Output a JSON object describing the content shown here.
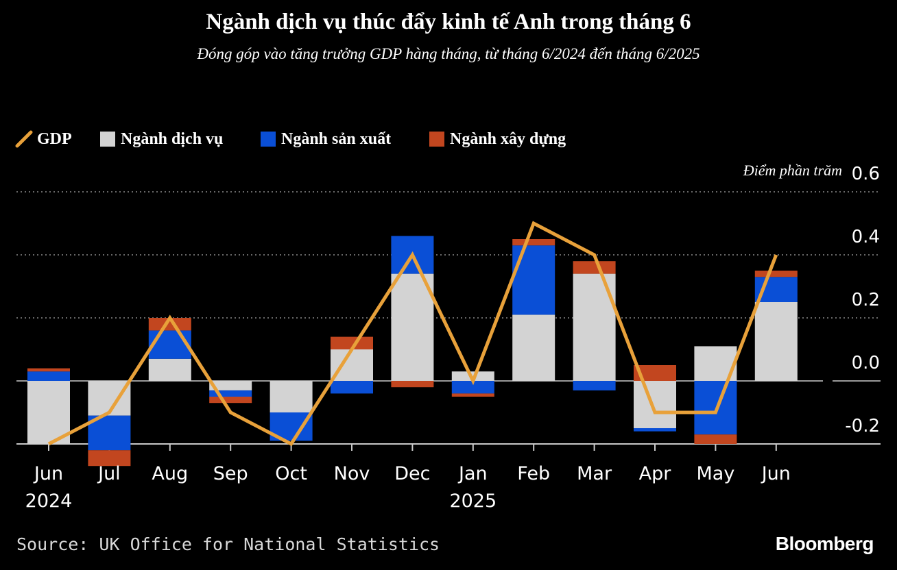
{
  "header": {
    "title": "Ngành dịch vụ thúc đẩy kinh tế Anh trong tháng 6",
    "subtitle": "Đóng góp vào tăng trưởng GDP hàng tháng, từ tháng 6/2024 đến tháng 6/2025"
  },
  "legend": {
    "gdp": "GDP",
    "services": "Ngành dịch vụ",
    "production": "Ngành sản xuất",
    "construction": "Ngành xây dựng"
  },
  "colors": {
    "gdp": "#e8a13a",
    "services": "#d3d3d3",
    "production": "#0a4fd6",
    "construction": "#c2461f",
    "grid": "#8a8a8a",
    "zero_line": "#9a9a9a",
    "axis_text": "#ffffff"
  },
  "footer": {
    "source": "Source: UK Office for National Statistics",
    "brand": "Bloomberg"
  },
  "chart_data": {
    "type": "bar",
    "stacked": true,
    "title": "Ngành dịch vụ thúc đẩy kinh tế Anh trong tháng 6",
    "ylabel": "Điểm phần trăm",
    "ylim": [
      -0.2,
      0.6
    ],
    "yticks": [
      -0.2,
      0.0,
      0.2,
      0.4,
      0.6
    ],
    "ytick_labels": [
      "-0.2",
      "0.0",
      "0.2",
      "0.4",
      "0.6"
    ],
    "categories": [
      "Jun",
      "Jul",
      "Aug",
      "Sep",
      "Oct",
      "Nov",
      "Dec",
      "Jan",
      "Feb",
      "Mar",
      "Apr",
      "May",
      "Jun"
    ],
    "year_labels": [
      {
        "index": 0,
        "label": "2024"
      },
      {
        "index": 7,
        "label": "2025"
      }
    ],
    "series": [
      {
        "name": "Ngành dịch vụ",
        "key": "services",
        "values": [
          -0.2,
          -0.11,
          0.07,
          -0.03,
          -0.1,
          0.1,
          0.34,
          0.03,
          0.21,
          0.34,
          -0.15,
          0.11,
          0.25
        ]
      },
      {
        "name": "Ngành sản xuất",
        "key": "production",
        "values": [
          0.03,
          -0.11,
          0.09,
          -0.02,
          -0.09,
          -0.04,
          0.12,
          -0.04,
          0.22,
          -0.03,
          -0.01,
          -0.17,
          0.08
        ]
      },
      {
        "name": "Ngành xây dựng",
        "key": "construction",
        "values": [
          0.01,
          -0.05,
          0.04,
          -0.02,
          0.0,
          0.04,
          -0.02,
          -0.01,
          0.02,
          0.04,
          0.05,
          -0.03,
          0.02
        ]
      }
    ],
    "line": {
      "name": "GDP",
      "key": "gdp",
      "values": [
        -0.2,
        -0.1,
        0.2,
        -0.1,
        -0.2,
        0.1,
        0.4,
        0.0,
        0.5,
        0.4,
        -0.1,
        -0.1,
        0.4
      ]
    }
  }
}
